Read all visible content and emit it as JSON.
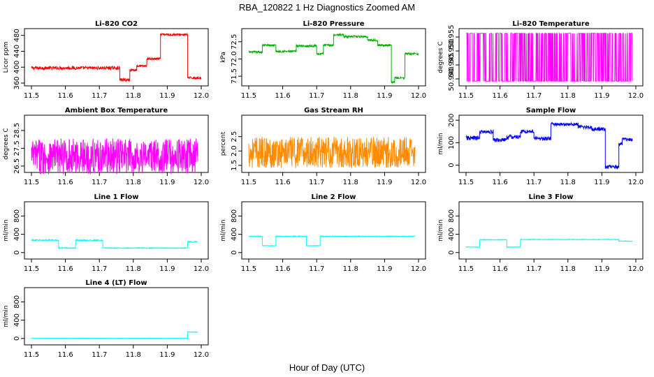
{
  "figure": {
    "title": "RBA_120822  1 Hz Diagnostics Zoomed AM",
    "xlabel": "Hour of Day (UTC)"
  },
  "chart_data": [
    {
      "type": "line",
      "title": "Li-820 CO2",
      "ylabel": "Licor ppm",
      "color": "#ff0000",
      "xlim": [
        11.5,
        12.0
      ],
      "ylim": [
        360,
        490
      ],
      "xticks": [
        "11.5",
        "11.6",
        "11.7",
        "11.8",
        "11.9",
        "12.0"
      ],
      "yticks": [
        "360",
        "400",
        "440",
        "480"
      ],
      "segments": [
        [
          11.5,
          11.76,
          398,
          4
        ],
        [
          11.76,
          11.79,
          368,
          4
        ],
        [
          11.79,
          11.81,
          393,
          3
        ],
        [
          11.81,
          11.84,
          403,
          3
        ],
        [
          11.84,
          11.88,
          421,
          3
        ],
        [
          11.88,
          11.96,
          482,
          3
        ],
        [
          11.96,
          12.0,
          373,
          3
        ]
      ]
    },
    {
      "type": "line",
      "title": "Li-820 Pressure",
      "ylabel": "kPa",
      "color": "#00b000",
      "xlim": [
        11.5,
        12.0
      ],
      "ylim": [
        71.3,
        72.8
      ],
      "xticks": [
        "11.5",
        "11.6",
        "11.7",
        "11.8",
        "11.9",
        "12.0"
      ],
      "yticks": [
        "71.5",
        "72.0",
        "72.5"
      ],
      "segments": [
        [
          11.5,
          11.54,
          72.2,
          0.03
        ],
        [
          11.54,
          11.58,
          72.4,
          0.03
        ],
        [
          11.58,
          11.64,
          72.22,
          0.03
        ],
        [
          11.64,
          11.7,
          72.38,
          0.03
        ],
        [
          11.7,
          11.72,
          72.15,
          0.03
        ],
        [
          11.72,
          11.75,
          72.4,
          0.03
        ],
        [
          11.75,
          11.78,
          72.7,
          0.03
        ],
        [
          11.78,
          11.85,
          72.65,
          0.03
        ],
        [
          11.85,
          11.88,
          72.55,
          0.03
        ],
        [
          11.88,
          11.92,
          72.4,
          0.03
        ],
        [
          11.92,
          11.93,
          71.33,
          0.03
        ],
        [
          11.93,
          11.96,
          71.45,
          0.03
        ],
        [
          11.96,
          12.0,
          72.15,
          0.03
        ]
      ]
    },
    {
      "type": "line",
      "title": "Li-820 Temperature",
      "ylabel": "degrees C",
      "color": "#ff00ff",
      "xlim": [
        11.5,
        12.0
      ],
      "ylim": [
        50.9385,
        50.957
      ],
      "xticks": [
        "11.5",
        "11.6",
        "11.7",
        "11.8",
        "11.9",
        "12.0"
      ],
      "yticks": [
        "50.940",
        "50.945",
        "50.950",
        "50.955"
      ],
      "binary_levels": [
        50.9392,
        50.9563
      ],
      "xrange": [
        11.5,
        11.99
      ]
    },
    {
      "type": "line",
      "title": "Ambient Box Temperature",
      "ylabel": "degrees C",
      "color": "#ff00ff",
      "xlim": [
        11.5,
        12.0
      ],
      "ylim": [
        26.3,
        29.2
      ],
      "xticks": [
        "11.5",
        "11.6",
        "11.7",
        "11.8",
        "11.9",
        "12.0"
      ],
      "yticks": [
        "26.5",
        "27.5",
        "28.5"
      ],
      "segments": [
        [
          11.5,
          11.99,
          27.05,
          1.0
        ]
      ]
    },
    {
      "type": "line",
      "title": "Gas Stream RH",
      "ylabel": "percent",
      "color": "#ff8c00",
      "xlim": [
        11.5,
        12.0
      ],
      "ylim": [
        1.35,
        3.15
      ],
      "xticks": [
        "11.5",
        "11.6",
        "11.7",
        "11.8",
        "11.9",
        "12.0"
      ],
      "yticks": [
        "1.5",
        "2.0",
        "2.5"
      ],
      "segments": [
        [
          11.5,
          11.99,
          1.95,
          0.55
        ]
      ]
    },
    {
      "type": "line",
      "title": "Sample Flow",
      "ylabel": "ml/min",
      "color": "#0000ff",
      "xlim": [
        11.5,
        12.0
      ],
      "ylim": [
        -20,
        210
      ],
      "xticks": [
        "11.5",
        "11.6",
        "11.7",
        "11.8",
        "11.9",
        "12.0"
      ],
      "yticks": [
        "0",
        "100",
        "200"
      ],
      "segments": [
        [
          11.5,
          11.54,
          120,
          10
        ],
        [
          11.54,
          11.58,
          148,
          9
        ],
        [
          11.58,
          11.62,
          112,
          9
        ],
        [
          11.62,
          11.66,
          125,
          9
        ],
        [
          11.66,
          11.7,
          150,
          9
        ],
        [
          11.7,
          11.75,
          118,
          9
        ],
        [
          11.75,
          11.83,
          182,
          7
        ],
        [
          11.83,
          11.87,
          170,
          8
        ],
        [
          11.87,
          11.91,
          160,
          8
        ],
        [
          11.91,
          11.95,
          -8,
          8
        ],
        [
          11.95,
          11.96,
          95,
          10
        ],
        [
          11.96,
          11.99,
          115,
          8
        ]
      ]
    },
    {
      "type": "line",
      "title": "Line 1 Flow",
      "ylabel": "ml/min",
      "color": "#00ffff",
      "xlim": [
        11.5,
        12.0
      ],
      "ylim": [
        -80,
        1050
      ],
      "xticks": [
        "11.5",
        "11.6",
        "11.7",
        "11.8",
        "11.9",
        "12.0"
      ],
      "yticks": [
        "0",
        "400",
        "800"
      ],
      "segments": [
        [
          11.5,
          11.58,
          270,
          15
        ],
        [
          11.58,
          11.63,
          100,
          10
        ],
        [
          11.63,
          11.71,
          265,
          15
        ],
        [
          11.71,
          11.96,
          100,
          8
        ],
        [
          11.96,
          11.99,
          235,
          15
        ]
      ]
    },
    {
      "type": "line",
      "title": "Line 2 Flow",
      "ylabel": "ml/min",
      "color": "#00ffff",
      "xlim": [
        11.5,
        12.0
      ],
      "ylim": [
        -80,
        1050
      ],
      "xticks": [
        "11.5",
        "11.6",
        "11.7",
        "11.8",
        "11.9",
        "12.0"
      ],
      "yticks": [
        "0",
        "400",
        "800"
      ],
      "segments": [
        [
          11.5,
          11.54,
          355,
          8
        ],
        [
          11.54,
          11.58,
          150,
          6
        ],
        [
          11.58,
          11.67,
          355,
          8
        ],
        [
          11.67,
          11.71,
          150,
          6
        ],
        [
          11.71,
          11.99,
          355,
          8
        ]
      ]
    },
    {
      "type": "line",
      "title": "Line 3 Flow",
      "ylabel": "ml/min",
      "color": "#00ffff",
      "xlim": [
        11.5,
        12.0
      ],
      "ylim": [
        -80,
        1050
      ],
      "xticks": [
        "11.5",
        "11.6",
        "11.7",
        "11.8",
        "11.9",
        "12.0"
      ],
      "yticks": [
        "0",
        "400",
        "800"
      ],
      "segments": [
        [
          11.5,
          11.54,
          120,
          6
        ],
        [
          11.54,
          11.62,
          280,
          8
        ],
        [
          11.62,
          11.66,
          120,
          6
        ],
        [
          11.66,
          11.95,
          285,
          6
        ],
        [
          11.95,
          11.99,
          250,
          6
        ]
      ]
    },
    {
      "type": "line",
      "title": "Line 4 (LT) Flow",
      "ylabel": "ml/min",
      "color": "#00ffff",
      "xlim": [
        11.5,
        12.0
      ],
      "ylim": [
        -80,
        1050
      ],
      "xticks": [
        "11.5",
        "11.6",
        "11.7",
        "11.8",
        "11.9",
        "12.0"
      ],
      "yticks": [
        "0",
        "400",
        "800"
      ],
      "segments": [
        [
          11.5,
          11.96,
          5,
          3
        ],
        [
          11.96,
          11.99,
          140,
          6
        ]
      ]
    }
  ]
}
